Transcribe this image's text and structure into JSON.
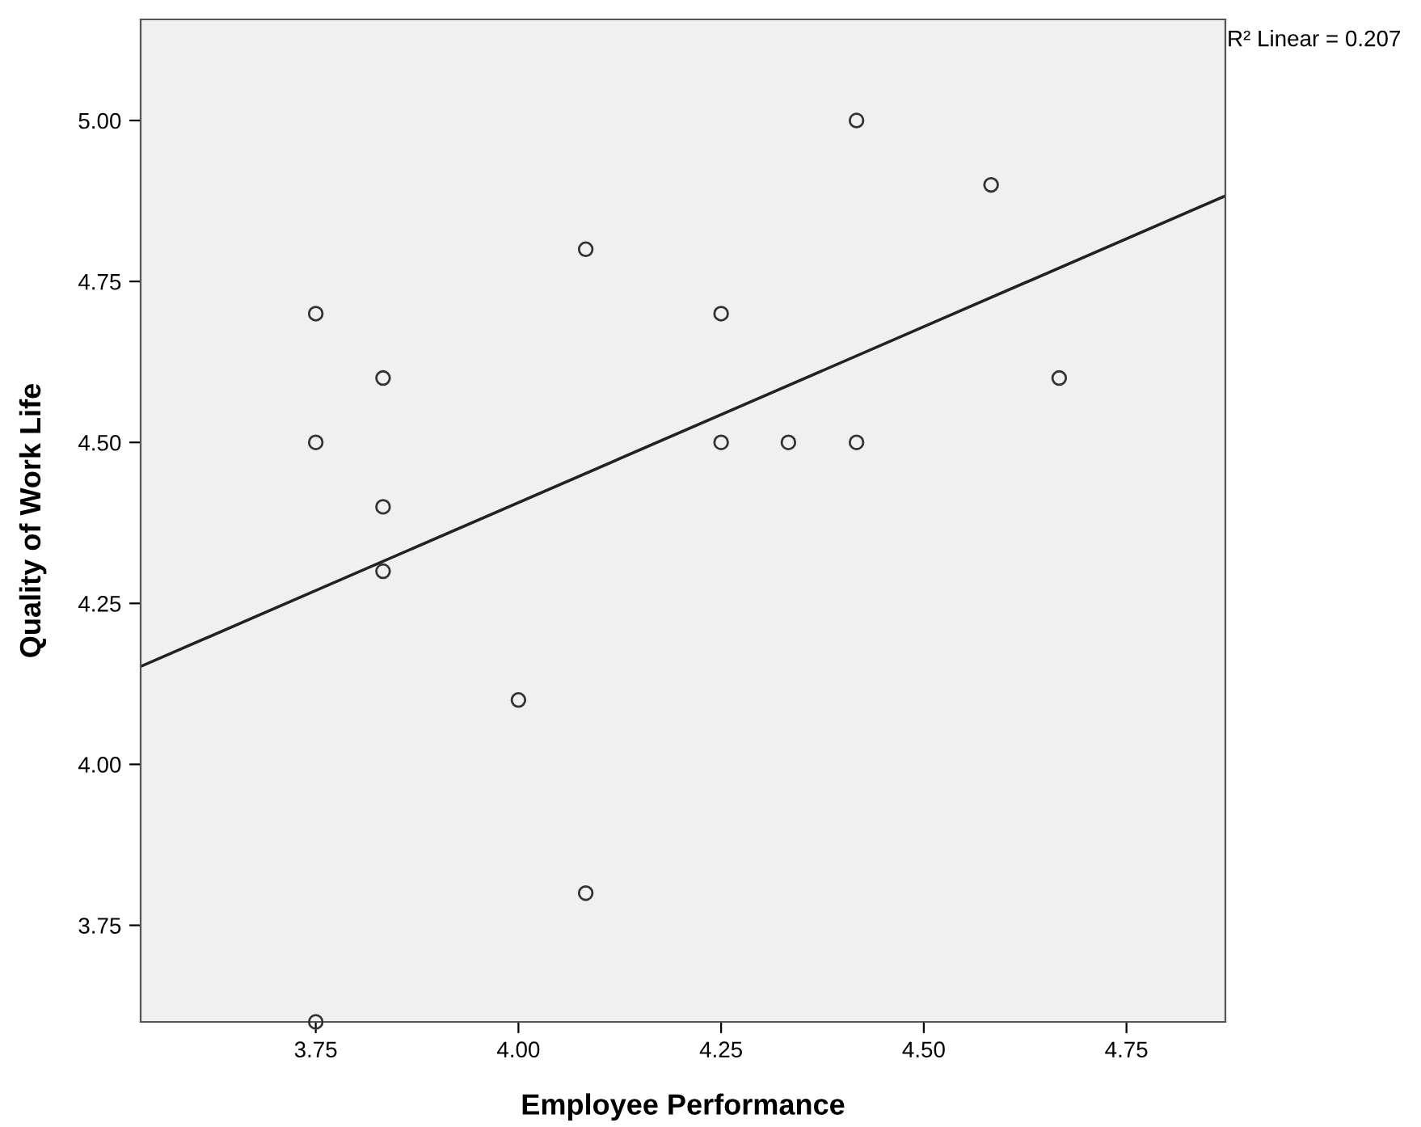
{
  "chart_data": {
    "type": "scatter",
    "xlabel": "Employee Performance",
    "ylabel": "Quality of Work Life",
    "annotations": [
      "R² Linear = 0.207"
    ],
    "series": [
      {
        "color": "#333333",
        "x": [
          3.75,
          3.75,
          3.75,
          3.833,
          3.833,
          3.833,
          4.0,
          4.083,
          4.083,
          4.25,
          4.25,
          4.333,
          4.417,
          4.417,
          4.583,
          4.667
        ],
        "values": [
          4.7,
          4.5,
          3.6,
          4.6,
          4.4,
          4.3,
          4.1,
          4.8,
          3.8,
          4.7,
          4.5,
          4.5,
          5.0,
          4.5,
          4.9,
          4.6
        ],
        "marker": "circle"
      },
      {
        "type": "line",
        "color": "#222222",
        "x": [
          3.534,
          4.872
        ],
        "values": [
          4.152,
          4.883
        ],
        "marker": "none",
        "line_style": "solid"
      }
    ],
    "xlim": [
      3.534,
      4.872
    ],
    "ylim": [
      3.6,
      5.157
    ],
    "xticks": [
      3.75,
      {
        "value": 4.0,
        "label": "4.00"
      },
      4.25,
      {
        "value": 4.5,
        "label": "4.50"
      },
      4.75
    ],
    "yticks": [
      3.75,
      {
        "value": 4.0,
        "label": "4.00"
      },
      4.25,
      {
        "value": 4.5,
        "label": "4.50"
      },
      4.75,
      {
        "value": 5.0,
        "label": "5.00"
      }
    ],
    "grid": false,
    "legend": false
  }
}
